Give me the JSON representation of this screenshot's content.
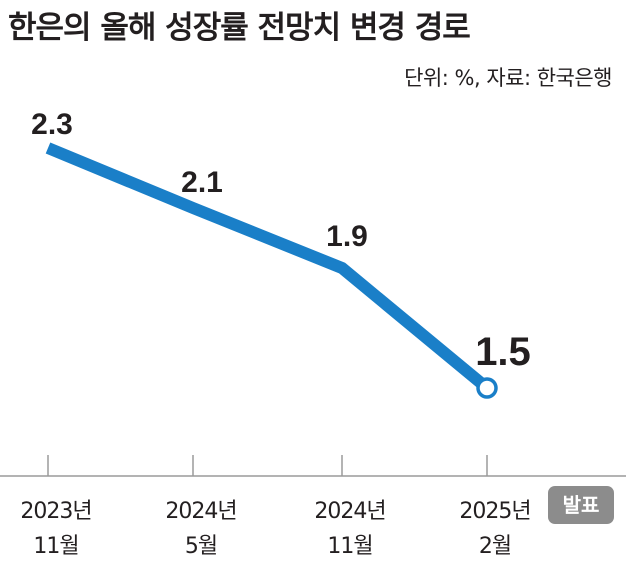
{
  "header": {
    "title": "한은의 올해 성장률 전망치 변경 경로",
    "source": "단위: %, 자료: 한국은행"
  },
  "badge": {
    "label": "발표"
  },
  "colors": {
    "line": "#1a7fc8",
    "text": "#231f20",
    "badge": "#8c8c8c",
    "axis": "#9a9a9a"
  },
  "chart_data": {
    "type": "line",
    "title": "한은의 올해 성장률 전망치 변경 경로",
    "categories": [
      [
        "2023년",
        "11월"
      ],
      [
        "2024년",
        "5월"
      ],
      [
        "2024년",
        "11월"
      ],
      [
        "2025년",
        "2월"
      ]
    ],
    "values": [
      2.3,
      2.1,
      1.9,
      1.5
    ],
    "value_labels": [
      "2.3",
      "2.1",
      "1.9",
      "1.5"
    ],
    "unit": "%",
    "highlight_last": true,
    "ylim": [
      1.1,
      2.4
    ],
    "grid": false
  }
}
